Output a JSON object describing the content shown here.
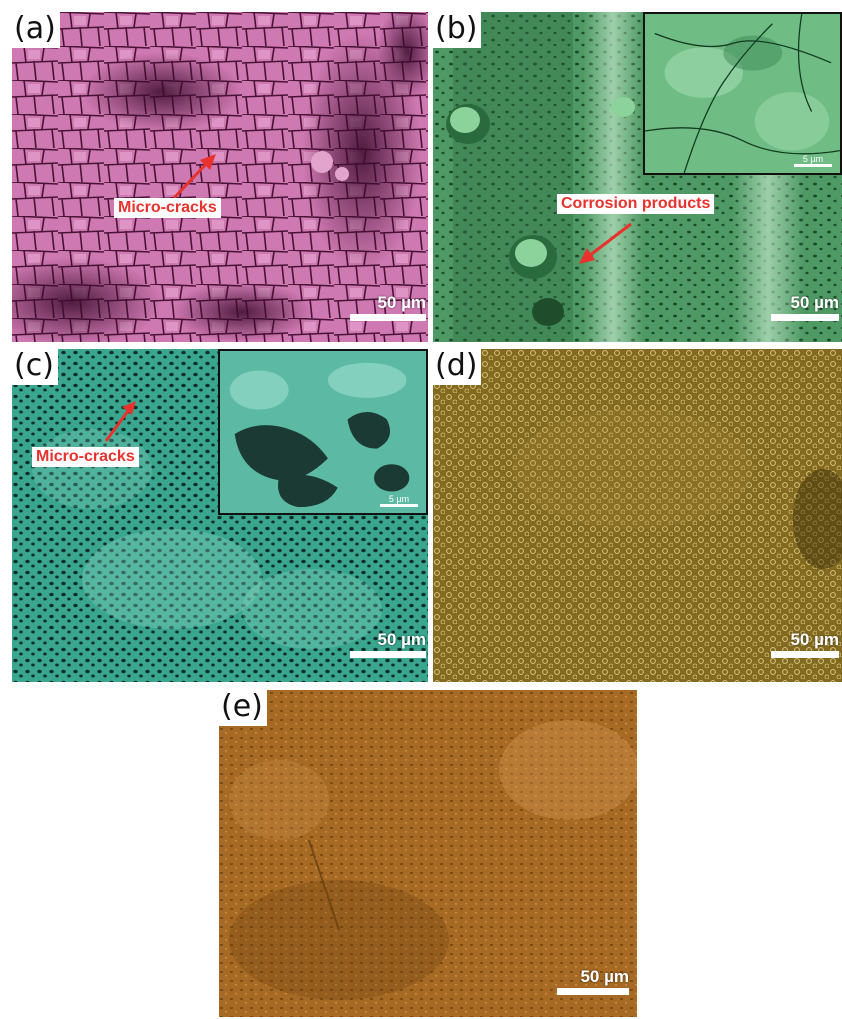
{
  "panels": {
    "a": {
      "label": "(a)",
      "scale": "50 µm",
      "annotation": "Micro-cracks",
      "color": "#c86aa8"
    },
    "b": {
      "label": "(b)",
      "scale": "50 µm",
      "annotation": "Corrosion products",
      "inset_scale": "5 µm",
      "color": "#4e9a63"
    },
    "c": {
      "label": "(c)",
      "scale": "50 µm",
      "annotation": "Micro-cracks",
      "inset_scale": "5 µm",
      "color": "#3fa993"
    },
    "d": {
      "label": "(d)",
      "scale": "50 µm",
      "color": "#8b7223"
    },
    "e": {
      "label": "(e)",
      "scale": "50 µm",
      "color": "#a96d27"
    }
  },
  "accent_color": "#e8322d"
}
